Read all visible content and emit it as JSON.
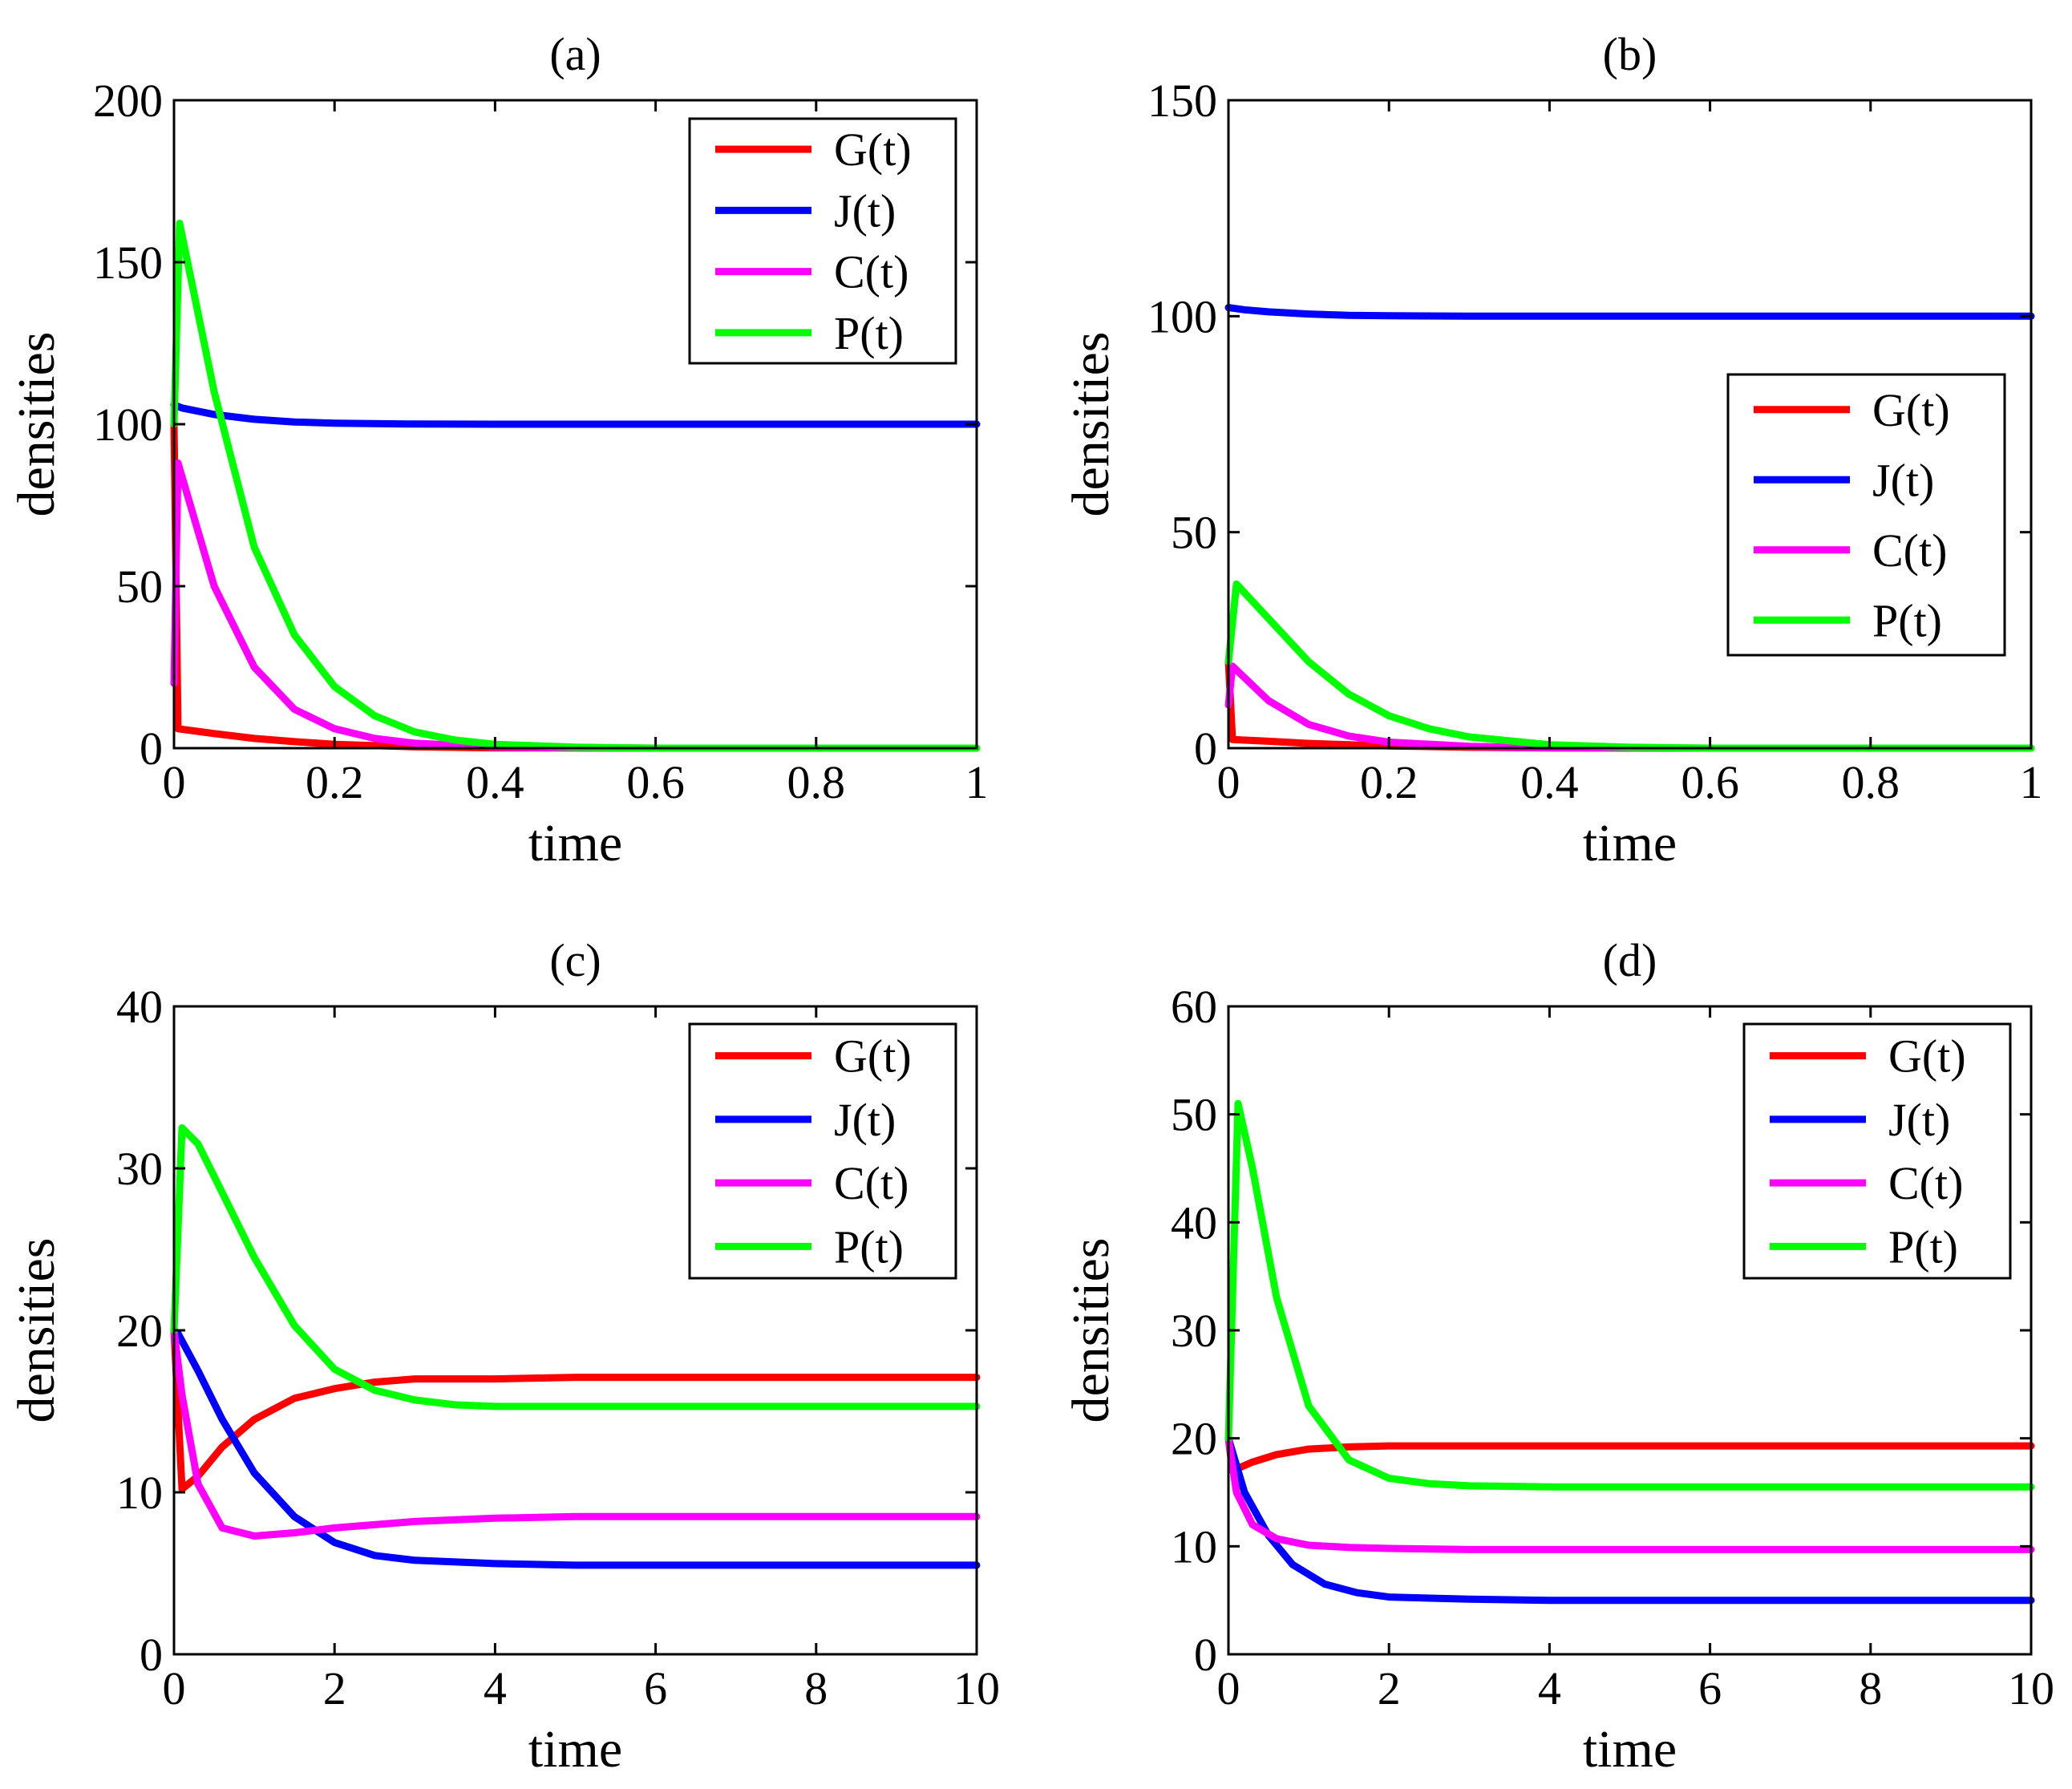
{
  "chart_data": [
    {
      "type": "line",
      "title": "(a)",
      "xlabel": "time",
      "ylabel": "densities",
      "xlim": [
        0,
        1
      ],
      "ylim": [
        0,
        200
      ],
      "xticks": [
        0,
        0.2,
        0.4,
        0.6,
        0.8,
        1
      ],
      "xtick_labels": [
        "0",
        "0.2",
        "0.4",
        "0.6",
        "0.8",
        "1"
      ],
      "yticks": [
        0,
        50,
        100,
        150,
        200
      ],
      "ytick_labels": [
        "0",
        "50",
        "100",
        "150",
        "200"
      ],
      "legend_position": "top-right",
      "series": [
        {
          "name": "G(t)",
          "color": "#ff0000",
          "x": [
            0,
            0.005,
            0.05,
            0.1,
            0.15,
            0.2,
            0.3,
            0.4,
            0.6,
            0.8,
            1
          ],
          "y": [
            100,
            6,
            4.5,
            3,
            2,
            1.2,
            0.4,
            0.1,
            0,
            0,
            0
          ]
        },
        {
          "name": "J(t)",
          "color": "#0000ff",
          "x": [
            0,
            0.01,
            0.05,
            0.1,
            0.15,
            0.2,
            0.3,
            0.4,
            0.6,
            0.8,
            1
          ],
          "y": [
            106,
            105,
            103,
            101.5,
            100.7,
            100.3,
            100.05,
            100,
            100,
            100,
            100
          ]
        },
        {
          "name": "C(t)",
          "color": "#ff00ff",
          "x": [
            0,
            0.005,
            0.05,
            0.1,
            0.15,
            0.2,
            0.25,
            0.3,
            0.4,
            0.5,
            0.6,
            0.8,
            1
          ],
          "y": [
            20,
            88,
            50,
            25,
            12,
            6,
            3,
            1.5,
            0.4,
            0.1,
            0,
            0,
            0
          ]
        },
        {
          "name": "P(t)",
          "color": "#00ff00",
          "x": [
            0,
            0.007,
            0.05,
            0.1,
            0.15,
            0.2,
            0.25,
            0.3,
            0.35,
            0.4,
            0.5,
            0.6,
            0.8,
            1
          ],
          "y": [
            100,
            162,
            110,
            62,
            35,
            19,
            10,
            5,
            2.5,
            1.2,
            0.3,
            0,
            0,
            0
          ]
        }
      ]
    },
    {
      "type": "line",
      "title": "(b)",
      "xlabel": "time",
      "ylabel": "densities",
      "xlim": [
        0,
        1
      ],
      "ylim": [
        0,
        150
      ],
      "xticks": [
        0,
        0.2,
        0.4,
        0.6,
        0.8,
        1
      ],
      "xtick_labels": [
        "0",
        "0.2",
        "0.4",
        "0.6",
        "0.8",
        "1"
      ],
      "yticks": [
        0,
        50,
        100,
        150
      ],
      "ytick_labels": [
        "0",
        "50",
        "100",
        "150"
      ],
      "legend_position": "center-right",
      "series": [
        {
          "name": "G(t)",
          "color": "#ff0000",
          "x": [
            0,
            0.005,
            0.05,
            0.1,
            0.2,
            0.3,
            0.4,
            0.6,
            0.8,
            1
          ],
          "y": [
            20,
            2,
            1.6,
            1.1,
            0.5,
            0.2,
            0.05,
            0,
            0,
            0
          ]
        },
        {
          "name": "J(t)",
          "color": "#0000ff",
          "x": [
            0,
            0.02,
            0.05,
            0.1,
            0.15,
            0.2,
            0.3,
            0.5,
            1
          ],
          "y": [
            102,
            101.5,
            101,
            100.5,
            100.2,
            100.1,
            100,
            100,
            100
          ]
        },
        {
          "name": "C(t)",
          "color": "#ff00ff",
          "x": [
            0,
            0.005,
            0.05,
            0.1,
            0.15,
            0.2,
            0.3,
            0.4,
            0.6,
            1
          ],
          "y": [
            10,
            19,
            11,
            5.5,
            2.8,
            1.4,
            0.4,
            0.1,
            0,
            0
          ]
        },
        {
          "name": "P(t)",
          "color": "#00ff00",
          "x": [
            0,
            0.01,
            0.05,
            0.1,
            0.15,
            0.2,
            0.25,
            0.3,
            0.4,
            0.5,
            0.6,
            1
          ],
          "y": [
            20,
            38,
            30,
            20,
            12.5,
            7.5,
            4.5,
            2.6,
            0.8,
            0.2,
            0,
            0
          ]
        }
      ]
    },
    {
      "type": "line",
      "title": "(c)",
      "xlabel": "time",
      "ylabel": "densities",
      "xlim": [
        0,
        10
      ],
      "ylim": [
        0,
        40
      ],
      "xticks": [
        0,
        2,
        4,
        6,
        8,
        10
      ],
      "xtick_labels": [
        "0",
        "2",
        "4",
        "6",
        "8",
        "10"
      ],
      "yticks": [
        0,
        10,
        20,
        30,
        40
      ],
      "ytick_labels": [
        "0",
        "10",
        "20",
        "30",
        "40"
      ],
      "legend_position": "top-right",
      "series": [
        {
          "name": "G(t)",
          "color": "#ff0000",
          "x": [
            0,
            0.1,
            0.3,
            0.6,
            1,
            1.5,
            2,
            2.5,
            3,
            4,
            5,
            6,
            8,
            10
          ],
          "y": [
            20,
            10.2,
            11,
            12.8,
            14.5,
            15.8,
            16.4,
            16.8,
            17,
            17,
            17.1,
            17.1,
            17.1,
            17.1
          ]
        },
        {
          "name": "J(t)",
          "color": "#0000ff",
          "x": [
            0,
            0.05,
            0.3,
            0.6,
            1,
            1.5,
            2,
            2.5,
            3,
            4,
            5,
            6,
            8,
            10
          ],
          "y": [
            20,
            19.8,
            17.5,
            14.5,
            11.2,
            8.5,
            6.9,
            6.1,
            5.8,
            5.6,
            5.5,
            5.5,
            5.5,
            5.5
          ]
        },
        {
          "name": "C(t)",
          "color": "#ff00ff",
          "x": [
            0,
            0.1,
            0.3,
            0.6,
            1,
            1.5,
            2,
            3,
            4,
            5,
            6,
            8,
            10
          ],
          "y": [
            20,
            16,
            10.5,
            7.8,
            7.3,
            7.5,
            7.8,
            8.2,
            8.4,
            8.5,
            8.5,
            8.5,
            8.5
          ]
        },
        {
          "name": "P(t)",
          "color": "#00ff00",
          "x": [
            0,
            0.1,
            0.3,
            0.6,
            1,
            1.5,
            2,
            2.5,
            3,
            3.5,
            4,
            5,
            6,
            8,
            10
          ],
          "y": [
            20,
            32.5,
            31.5,
            28.5,
            24.5,
            20.3,
            17.6,
            16.3,
            15.7,
            15.4,
            15.3,
            15.3,
            15.3,
            15.3,
            15.3
          ]
        }
      ]
    },
    {
      "type": "line",
      "title": "(d)",
      "xlabel": "time",
      "ylabel": "densities",
      "xlim": [
        0,
        10
      ],
      "ylim": [
        0,
        60
      ],
      "xticks": [
        0,
        2,
        4,
        6,
        8,
        10
      ],
      "xtick_labels": [
        "0",
        "2",
        "4",
        "6",
        "8",
        "10"
      ],
      "yticks": [
        0,
        10,
        20,
        30,
        40,
        50,
        60
      ],
      "ytick_labels": [
        "0",
        "10",
        "20",
        "30",
        "40",
        "50",
        "60"
      ],
      "legend_position": "top-right",
      "series": [
        {
          "name": "G(t)",
          "color": "#ff0000",
          "x": [
            0,
            0.05,
            0.3,
            0.6,
            1,
            1.5,
            2,
            3,
            4,
            6,
            8,
            10
          ],
          "y": [
            20,
            17,
            17.8,
            18.5,
            19,
            19.2,
            19.3,
            19.3,
            19.3,
            19.3,
            19.3,
            19.3
          ]
        },
        {
          "name": "J(t)",
          "color": "#0000ff",
          "x": [
            0,
            0.2,
            0.5,
            0.8,
            1.2,
            1.6,
            2,
            3,
            4,
            6,
            8,
            10
          ],
          "y": [
            20,
            15,
            11,
            8.3,
            6.5,
            5.7,
            5.3,
            5.1,
            5,
            5,
            5,
            5
          ]
        },
        {
          "name": "C(t)",
          "color": "#ff00ff",
          "x": [
            0,
            0.1,
            0.3,
            0.6,
            1,
            1.5,
            2,
            3,
            4,
            6,
            8,
            10
          ],
          "y": [
            20,
            15,
            12,
            10.7,
            10.1,
            9.9,
            9.8,
            9.7,
            9.7,
            9.7,
            9.7,
            9.7
          ]
        },
        {
          "name": "P(t)",
          "color": "#00ff00",
          "x": [
            0,
            0.12,
            0.3,
            0.6,
            1,
            1.5,
            2,
            2.5,
            3,
            4,
            5,
            6,
            8,
            10
          ],
          "y": [
            20,
            51,
            45,
            33,
            23,
            18,
            16.3,
            15.8,
            15.6,
            15.5,
            15.5,
            15.5,
            15.5,
            15.5
          ]
        }
      ]
    }
  ]
}
